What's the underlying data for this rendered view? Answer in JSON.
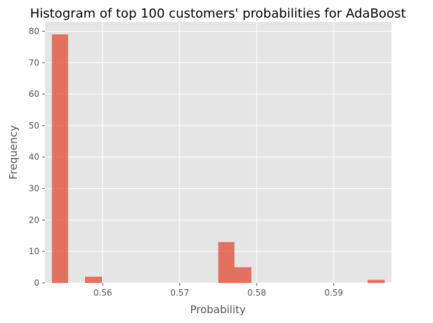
{
  "chart_data": {
    "type": "bar",
    "title": "Histogram of top 100 customers' probabilities for AdaBoost",
    "xlabel": "Probability",
    "ylabel": "Frequency",
    "xlim": [
      0.5525,
      0.5975
    ],
    "ylim": [
      0,
      83
    ],
    "xticks": [
      0.56,
      0.57,
      0.58,
      0.59
    ],
    "xtick_labels": [
      "0.56",
      "0.57",
      "0.58",
      "0.59"
    ],
    "yticks": [
      0,
      10,
      20,
      30,
      40,
      50,
      60,
      70,
      80
    ],
    "ytick_labels": [
      "0",
      "10",
      "20",
      "30",
      "40",
      "50",
      "60",
      "70",
      "80"
    ],
    "grid": true,
    "bar_color": "#e24a33",
    "bins": [
      {
        "x0": 0.5534,
        "x1": 0.5555,
        "count": 79
      },
      {
        "x0": 0.5555,
        "x1": 0.5577,
        "count": 0
      },
      {
        "x0": 0.5577,
        "x1": 0.5599,
        "count": 2
      },
      {
        "x0": 0.5599,
        "x1": 0.562,
        "count": 0
      },
      {
        "x0": 0.562,
        "x1": 0.5642,
        "count": 0
      },
      {
        "x0": 0.5642,
        "x1": 0.5663,
        "count": 0
      },
      {
        "x0": 0.5663,
        "x1": 0.5685,
        "count": 0
      },
      {
        "x0": 0.5685,
        "x1": 0.5707,
        "count": 0
      },
      {
        "x0": 0.5707,
        "x1": 0.5728,
        "count": 0
      },
      {
        "x0": 0.5728,
        "x1": 0.575,
        "count": 0
      },
      {
        "x0": 0.575,
        "x1": 0.5771,
        "count": 13
      },
      {
        "x0": 0.5771,
        "x1": 0.5793,
        "count": 5
      },
      {
        "x0": 0.5793,
        "x1": 0.5815,
        "count": 0
      },
      {
        "x0": 0.5815,
        "x1": 0.5836,
        "count": 0
      },
      {
        "x0": 0.5836,
        "x1": 0.5858,
        "count": 0
      },
      {
        "x0": 0.5858,
        "x1": 0.5879,
        "count": 0
      },
      {
        "x0": 0.5879,
        "x1": 0.5901,
        "count": 0
      },
      {
        "x0": 0.5901,
        "x1": 0.5923,
        "count": 0
      },
      {
        "x0": 0.5923,
        "x1": 0.5944,
        "count": 0
      },
      {
        "x0": 0.5944,
        "x1": 0.5966,
        "count": 1
      }
    ]
  }
}
